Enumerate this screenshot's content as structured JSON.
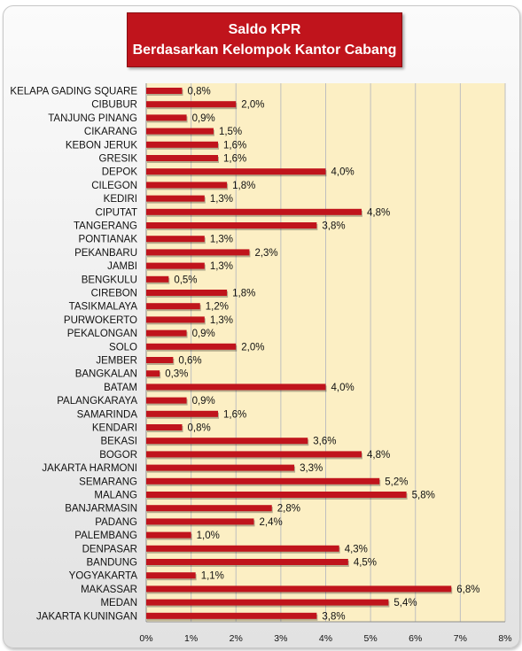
{
  "chart_data": {
    "type": "bar",
    "orientation": "horizontal",
    "title": "Saldo KPR",
    "subtitle": "Berdasarkan Kelompok Kantor Cabang",
    "categories": [
      "KELAPA GADING SQUARE",
      "CIBUBUR",
      "TANJUNG PINANG",
      "CIKARANG",
      "KEBON JERUK",
      "GRESIK",
      "DEPOK",
      "CILEGON",
      "KEDIRI",
      "CIPUTAT",
      "TANGERANG",
      "PONTIANAK",
      "PEKANBARU",
      "JAMBI",
      "BENGKULU",
      "CIREBON",
      "TASIKMALAYA",
      "PURWOKERTO",
      "PEKALONGAN",
      "SOLO",
      "JEMBER",
      "BANGKALAN",
      "BATAM",
      "PALANGKARAYA",
      "SAMARINDA",
      "KENDARI",
      "BEKASI",
      "BOGOR",
      "JAKARTA HARMONI",
      "SEMARANG",
      "MALANG",
      "BANJARMASIN",
      "PADANG",
      "PALEMBANG",
      "DENPASAR",
      "BANDUNG",
      "YOGYAKARTA",
      "MAKASSAR",
      "MEDAN",
      "JAKARTA KUNINGAN"
    ],
    "values": [
      0.8,
      2.0,
      0.9,
      1.5,
      1.6,
      1.6,
      4.0,
      1.8,
      1.3,
      4.8,
      3.8,
      1.3,
      2.3,
      1.3,
      0.5,
      1.8,
      1.2,
      1.3,
      0.9,
      2.0,
      0.6,
      0.3,
      4.0,
      0.9,
      1.6,
      0.8,
      3.6,
      4.8,
      3.3,
      5.2,
      5.8,
      2.8,
      2.4,
      1.0,
      4.3,
      4.5,
      1.1,
      6.8,
      5.4,
      3.8
    ],
    "value_labels": [
      "0,8%",
      "2,0%",
      "0,9%",
      "1,5%",
      "1,6%",
      "1,6%",
      "4,0%",
      "1,8%",
      "1,3%",
      "4,8%",
      "3,8%",
      "1,3%",
      "2,3%",
      "1,3%",
      "0,5%",
      "1,8%",
      "1,2%",
      "1,3%",
      "0,9%",
      "2,0%",
      "0,6%",
      "0,3%",
      "4,0%",
      "0,9%",
      "1,6%",
      "0,8%",
      "3,6%",
      "4,8%",
      "3,3%",
      "5,2%",
      "5,8%",
      "2,8%",
      "2,4%",
      "1,0%",
      "4,3%",
      "4,5%",
      "1,1%",
      "6,8%",
      "5,4%",
      "3,8%"
    ],
    "xlim": [
      0,
      8
    ],
    "x_ticks": [
      "0%",
      "1%",
      "2%",
      "3%",
      "4%",
      "5%",
      "6%",
      "7%",
      "8%"
    ],
    "xlabel": "",
    "ylabel": "",
    "grid": true,
    "legend": "none",
    "colors": {
      "bar": "#c0141c",
      "plot_background": "#fcefc4",
      "grid": "#bfbfbf",
      "title_background": "#c0141c"
    }
  }
}
